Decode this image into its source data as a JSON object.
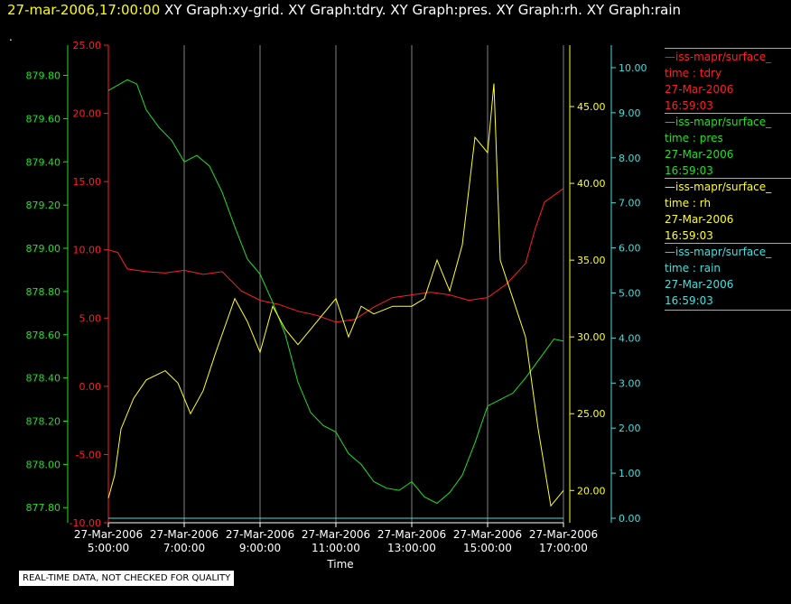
{
  "header": {
    "datetime": "27-mar-2006,17:00:00",
    "graphs": [
      "XY Graph:xy-grid.",
      "XY Graph:tdry.",
      "XY Graph:pres.",
      "XY Graph:rh.",
      "XY Graph:rain"
    ],
    "dot": "."
  },
  "footer": {
    "note": "REAL-TIME DATA, NOT CHECKED FOR QUALITY"
  },
  "legend": [
    {
      "source": "iss-mapr/surface_",
      "var_label": "time : tdry",
      "date": "27-Mar-2006",
      "time": "16:59:03",
      "color": "#ff2020"
    },
    {
      "source": "iss-mapr/surface_",
      "var_label": "time : pres",
      "date": "27-Mar-2006",
      "time": "16:59:03",
      "color": "#20e020"
    },
    {
      "source": "iss-mapr/surface_",
      "var_label": "time : rh",
      "date": "27-Mar-2006",
      "time": "16:59:03",
      "color": "#ffff20"
    },
    {
      "source": "iss-mapr/surface_",
      "var_label": "time : rain",
      "date": "27-Mar-2006",
      "time": "16:59:03",
      "color": "#40e0e0"
    }
  ],
  "chart_data": {
    "type": "line",
    "xlabel": "Time",
    "x_range": [
      "2006-03-27 05:00",
      "2006-03-27 17:00"
    ],
    "x_ticks": [
      {
        "date": "27-Mar-2006",
        "time": "5:00:00"
      },
      {
        "date": "27-Mar-2006",
        "time": "7:00:00"
      },
      {
        "date": "27-Mar-2006",
        "time": "9:00:00"
      },
      {
        "date": "27-Mar-2006",
        "time": "11:00:00"
      },
      {
        "date": "27-Mar-2006",
        "time": "13:00:00"
      },
      {
        "date": "27-Mar-2006",
        "time": "15:00:00"
      },
      {
        "date": "27-Mar-2006",
        "time": "17:00:00"
      }
    ],
    "vertical_grid": true,
    "axes": {
      "pres": {
        "side": "left-outer",
        "color": "#20e020",
        "range": [
          877.73,
          879.94
        ],
        "ticks": [
          "877.80",
          "878.00",
          "878.20",
          "878.40",
          "878.60",
          "878.80",
          "879.00",
          "879.20",
          "879.40",
          "879.60",
          "879.80"
        ]
      },
      "tdry": {
        "side": "left-inner",
        "color": "#ff2020",
        "range": [
          -10,
          25
        ],
        "ticks": [
          "-10.00",
          "-5.00",
          "0.00",
          "5.00",
          "10.00",
          "15.00",
          "20.00",
          "25.00"
        ]
      },
      "rh": {
        "side": "right-inner",
        "color": "#ffff20",
        "range": [
          17.9,
          49
        ],
        "ticks": [
          "20.00",
          "25.00",
          "30.00",
          "35.00",
          "40.00",
          "45.00"
        ]
      },
      "rain": {
        "side": "right-outer",
        "color": "#40e0e0",
        "range": [
          -0.1,
          10.5
        ],
        "ticks": [
          "0.00",
          "1.00",
          "2.00",
          "3.00",
          "4.00",
          "5.00",
          "6.00",
          "7.00",
          "8.00",
          "9.00",
          "10.00"
        ]
      }
    },
    "series": [
      {
        "name": "tdry",
        "axis": "tdry",
        "color": "#ff2020",
        "x": [
          "05:00",
          "05:15",
          "05:30",
          "06:00",
          "06:30",
          "07:00",
          "07:30",
          "08:00",
          "08:30",
          "09:00",
          "09:30",
          "10:00",
          "10:30",
          "11:00",
          "11:30",
          "12:00",
          "12:30",
          "13:00",
          "13:30",
          "14:00",
          "14:30",
          "15:00",
          "15:30",
          "16:00",
          "16:15",
          "16:30",
          "16:45",
          "17:00"
        ],
        "y": [
          10.0,
          9.8,
          8.6,
          8.4,
          8.3,
          8.5,
          8.2,
          8.4,
          7.0,
          6.3,
          6.0,
          5.5,
          5.2,
          4.7,
          4.9,
          5.8,
          6.5,
          6.7,
          6.9,
          6.7,
          6.3,
          6.5,
          7.5,
          9.0,
          11.5,
          13.5,
          14.0,
          14.5
        ]
      },
      {
        "name": "pres",
        "axis": "pres",
        "color": "#20e020",
        "x": [
          "05:00",
          "05:30",
          "05:45",
          "06:00",
          "06:20",
          "06:40",
          "07:00",
          "07:20",
          "07:40",
          "08:00",
          "08:20",
          "08:40",
          "09:00",
          "09:20",
          "09:40",
          "10:00",
          "10:20",
          "10:40",
          "11:00",
          "11:20",
          "11:40",
          "12:00",
          "12:20",
          "12:40",
          "13:00",
          "13:20",
          "13:40",
          "14:00",
          "14:20",
          "14:40",
          "15:00",
          "15:20",
          "15:40",
          "16:00",
          "16:15",
          "16:30",
          "16:45",
          "17:00"
        ],
        "y": [
          879.73,
          879.78,
          879.76,
          879.64,
          879.56,
          879.5,
          879.4,
          879.43,
          879.38,
          879.26,
          879.1,
          878.95,
          878.88,
          878.75,
          878.6,
          878.38,
          878.24,
          878.18,
          878.15,
          878.05,
          878.0,
          877.92,
          877.89,
          877.88,
          877.92,
          877.85,
          877.82,
          877.87,
          877.95,
          878.1,
          878.27,
          878.3,
          878.33,
          878.4,
          878.46,
          878.52,
          878.58,
          878.57
        ]
      },
      {
        "name": "rh",
        "axis": "rh",
        "color": "#ffff20",
        "x": [
          "05:00",
          "05:10",
          "05:20",
          "05:40",
          "06:00",
          "06:30",
          "06:50",
          "07:10",
          "07:30",
          "07:50",
          "08:20",
          "08:40",
          "09:00",
          "09:20",
          "09:40",
          "10:00",
          "10:30",
          "11:00",
          "11:20",
          "11:40",
          "12:00",
          "12:30",
          "13:00",
          "13:20",
          "13:40",
          "14:00",
          "14:20",
          "14:40",
          "15:00",
          "15:10",
          "15:20",
          "15:40",
          "16:00",
          "16:20",
          "16:40",
          "17:00"
        ],
        "y": [
          19.5,
          21.0,
          24.0,
          26.0,
          27.2,
          27.8,
          27.0,
          25.0,
          26.5,
          29.0,
          32.5,
          31.0,
          29.0,
          32.0,
          30.5,
          29.5,
          31.0,
          32.5,
          30.0,
          32.0,
          31.5,
          32.0,
          32.0,
          32.5,
          35.0,
          33.0,
          36.0,
          43.0,
          42.0,
          46.5,
          35.0,
          32.5,
          30.0,
          24.0,
          19.0,
          20.0
        ]
      },
      {
        "name": "rain",
        "axis": "rain",
        "color": "#40e0e0",
        "x": [
          "05:00",
          "17:00"
        ],
        "y": [
          0.0,
          0.0
        ]
      }
    ]
  }
}
